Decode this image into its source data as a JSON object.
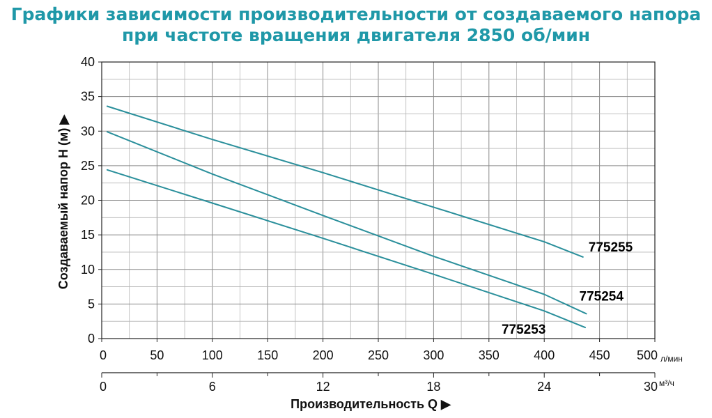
{
  "title_line1": "Графики зависимости производительности от создаваемого напора",
  "title_line2": "при частоте вращения двигателя 2850 об/мин",
  "chart_data": {
    "type": "line",
    "ylabel": "Создаваемый напор H (м) ▶",
    "xlabel": "Производительность Q ▶",
    "x_unit": "л/мин",
    "x2_unit": "м³/ч",
    "xlim": [
      0,
      500
    ],
    "ylim": [
      0,
      40
    ],
    "x2lim": [
      0,
      30
    ],
    "x_ticks": [
      "0",
      "50",
      "100",
      "150",
      "200",
      "250",
      "300",
      "350",
      "400",
      "450",
      "500"
    ],
    "x2_ticks": [
      "0",
      "6",
      "12",
      "18",
      "24",
      "30"
    ],
    "y_ticks": [
      "0",
      "5",
      "10",
      "15",
      "20",
      "25",
      "30",
      "35",
      "40"
    ],
    "grid": true,
    "series": [
      {
        "name": "775255",
        "x": [
          5,
          100,
          200,
          300,
          400,
          435
        ],
        "y": [
          33.6,
          28.8,
          24.0,
          19.0,
          14.0,
          11.8
        ]
      },
      {
        "name": "775254",
        "x": [
          5,
          100,
          200,
          300,
          400,
          438
        ],
        "y": [
          29.9,
          23.8,
          17.8,
          11.9,
          6.4,
          3.6
        ]
      },
      {
        "name": "775253",
        "x": [
          5,
          100,
          200,
          300,
          400,
          437
        ],
        "y": [
          24.4,
          19.6,
          14.5,
          9.3,
          4.0,
          1.6
        ]
      }
    ],
    "line_color": "#2a8f9b"
  }
}
